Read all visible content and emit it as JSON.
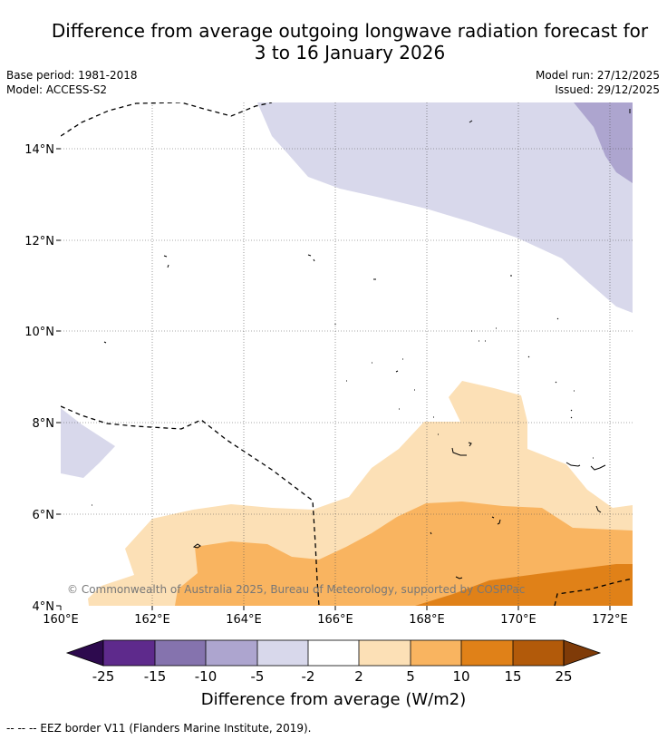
{
  "title": {
    "line1": "Difference from average outgoing longwave radiation forecast for",
    "line2": "3 to 16 January 2026"
  },
  "meta": {
    "base_period": "Base period: 1981-2018",
    "model": "Model: ACCESS-S2",
    "model_run": "Model run: 27/12/2025",
    "issued": "Issued: 29/12/2025"
  },
  "map": {
    "lon_range": [
      160,
      172.5
    ],
    "lat_range": [
      4,
      15
    ],
    "lon_ticks": [
      {
        "value": 160,
        "label": "160°E"
      },
      {
        "value": 162,
        "label": "162°E"
      },
      {
        "value": 164,
        "label": "164°E"
      },
      {
        "value": 166,
        "label": "166°E"
      },
      {
        "value": 168,
        "label": "168°E"
      },
      {
        "value": 170,
        "label": "170°E"
      },
      {
        "value": 172,
        "label": "172°E"
      }
    ],
    "lat_ticks": [
      {
        "value": 4,
        "label": "4°N"
      },
      {
        "value": 6,
        "label": "6°N"
      },
      {
        "value": 8,
        "label": "8°N"
      },
      {
        "value": 10,
        "label": "10°N"
      },
      {
        "value": 12,
        "label": "12°N"
      },
      {
        "value": 14,
        "label": "14°N"
      }
    ],
    "copyright": "© Commonwealth of Australia 2025, Bureau of Meteorology, supported by COSPPac"
  },
  "colorbar": {
    "labels": [
      "-25",
      "-15",
      "-10",
      "-5",
      "-2",
      "2",
      "5",
      "10",
      "15",
      "25"
    ],
    "colors": {
      "lt_-25": "#2d0a4e",
      "-25_-15": "#5e2a8c",
      "-15_-10": "#8573ae",
      "-10_-5": "#ada5cf",
      "-5_-2": "#d8d8eb",
      "-2_2": "#ffffff",
      "2_5": "#fce0b6",
      "5_10": "#f9b460",
      "10_15": "#e08118",
      "15_25": "#b25a0a",
      "gt_25": "#7f3b08"
    },
    "label": "Difference from average (W/m2)"
  },
  "footer": {
    "legend": "--  --  -- EEZ border V11 (Flanders Marine Institute, 2019)."
  }
}
